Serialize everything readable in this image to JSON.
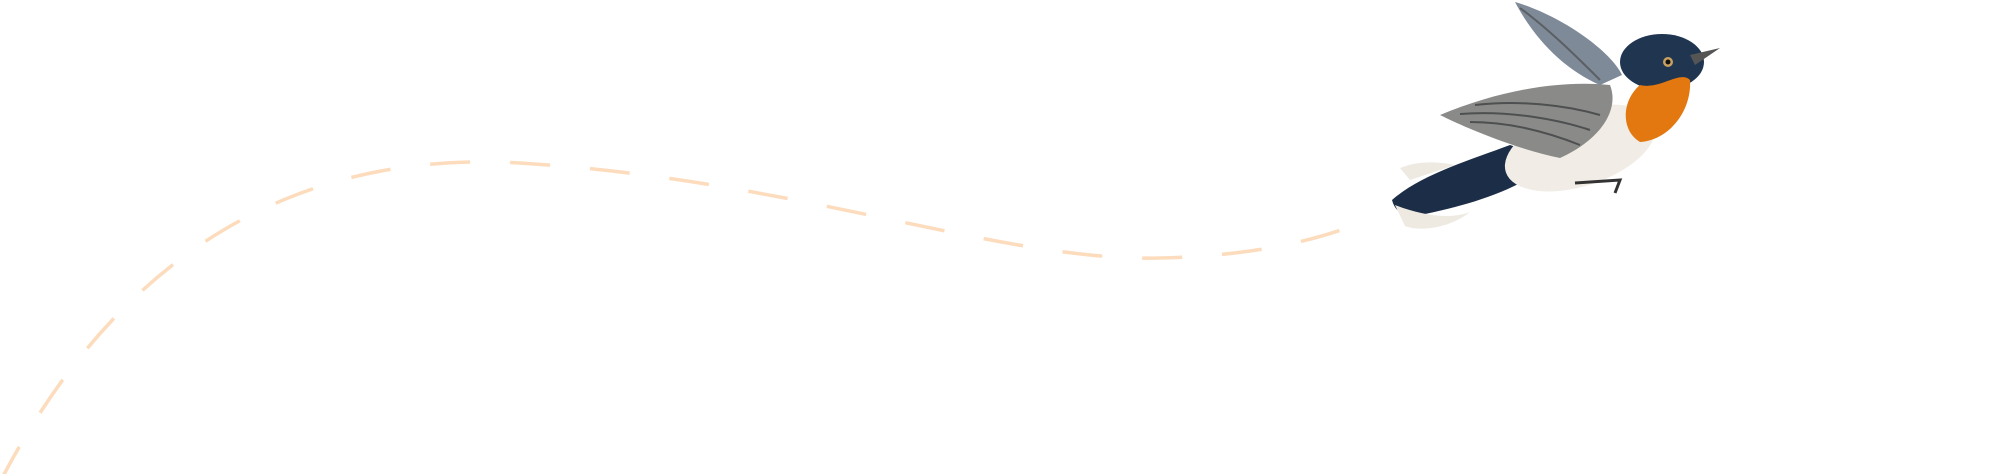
{
  "illustration": {
    "subject": "bird-in-flight",
    "colors": {
      "flight_path": "#fcdcbc",
      "head_tail": "#1f3550",
      "throat": "#e2780f",
      "belly": "#f1ede6",
      "wing": "#8a8b88"
    }
  }
}
